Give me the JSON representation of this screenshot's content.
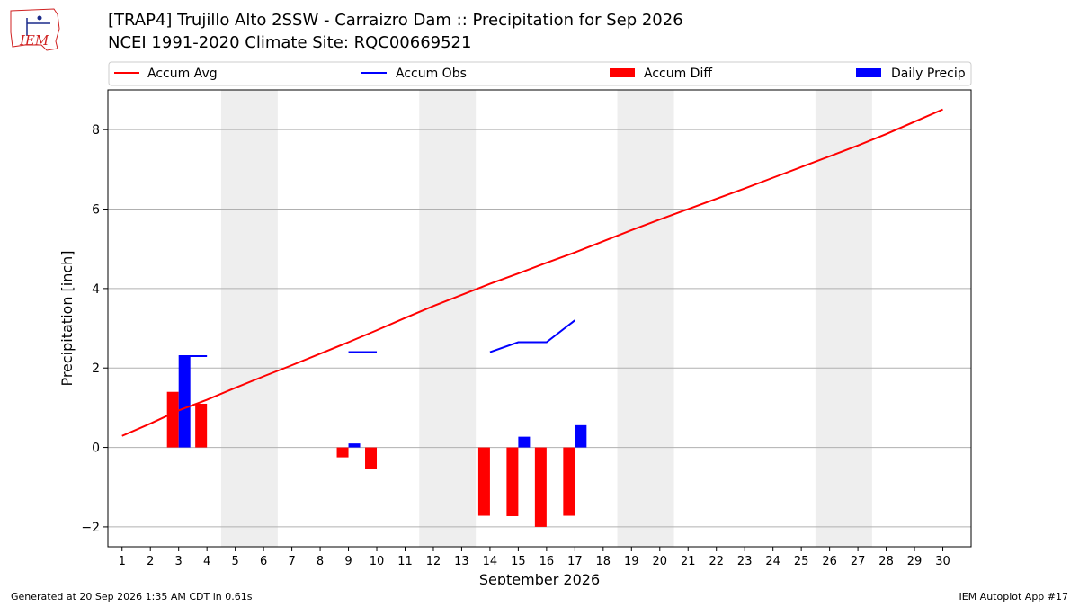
{
  "logo": {
    "text": "IEM"
  },
  "title": {
    "line1": "[TRAP4] Trujillo Alto 2SSW - Carraizro Dam :: Precipitation for Sep 2026",
    "line2": "NCEI 1991-2020 Climate Site: RQC00669521"
  },
  "footer": {
    "left": "Generated at 20 Sep 2026 1:35 AM CDT in 0.61s",
    "right": "IEM Autoplot App #17"
  },
  "colors": {
    "accum_avg": "#ff0000",
    "accum_obs": "#0000ff",
    "accum_diff": "#ff0000",
    "daily_precip": "#0000ff",
    "weekend_shade": "#eeeeee",
    "grid": "#b0b0b0"
  },
  "chart_data": {
    "type": "bar",
    "xlabel": "September 2026",
    "ylabel": "Precipitation [inch]",
    "xlim": [
      0.5,
      31
    ],
    "ylim": [
      -2.5,
      9.0
    ],
    "x_ticks": [
      1,
      2,
      3,
      4,
      5,
      6,
      7,
      8,
      9,
      10,
      11,
      12,
      13,
      14,
      15,
      16,
      17,
      18,
      19,
      20,
      21,
      22,
      23,
      24,
      25,
      26,
      27,
      28,
      29,
      30
    ],
    "y_ticks": [
      -2,
      0,
      2,
      4,
      6,
      8
    ],
    "y_tick_labels": [
      "−2",
      "0",
      "2",
      "4",
      "6",
      "8"
    ],
    "grid": "horizontal",
    "legend_position": "top",
    "legend": [
      "Accum Avg",
      "Accum Obs",
      "Accum Diff",
      "Daily Precip"
    ],
    "weekend_shading": [
      [
        4.5,
        6.5
      ],
      [
        11.5,
        13.5
      ],
      [
        18.5,
        20.5
      ],
      [
        25.5,
        27.5
      ]
    ],
    "series": [
      {
        "name": "Accum Avg",
        "type": "line",
        "x": [
          1,
          2,
          3,
          4,
          5,
          6,
          7,
          8,
          9,
          10,
          11,
          12,
          13,
          14,
          15,
          16,
          17,
          18,
          19,
          20,
          21,
          22,
          23,
          24,
          25,
          26,
          27,
          28,
          29,
          30
        ],
        "values": [
          0.29,
          0.6,
          0.93,
          1.2,
          1.5,
          1.79,
          2.07,
          2.36,
          2.65,
          2.95,
          3.26,
          3.56,
          3.84,
          4.12,
          4.38,
          4.65,
          4.91,
          5.19,
          5.47,
          5.74,
          6.0,
          6.26,
          6.52,
          6.79,
          7.06,
          7.33,
          7.6,
          7.89,
          8.2,
          8.51
        ]
      },
      {
        "name": "Accum Obs",
        "type": "line",
        "segments": [
          {
            "x": [
              3,
              4
            ],
            "values": [
              2.3,
              2.3
            ]
          },
          {
            "x": [
              9,
              10
            ],
            "values": [
              2.4,
              2.4
            ]
          },
          {
            "x": [
              14,
              15,
              16,
              17
            ],
            "values": [
              2.4,
              2.65,
              2.65,
              3.2
            ]
          }
        ]
      },
      {
        "name": "Accum Diff",
        "type": "bar",
        "x": [
          3,
          4,
          9,
          10,
          14,
          15,
          16,
          17
        ],
        "values": [
          1.4,
          1.1,
          -0.25,
          -0.55,
          -1.72,
          -1.73,
          -2.0,
          -1.72
        ]
      },
      {
        "name": "Daily Precip",
        "type": "bar",
        "x": [
          3,
          9,
          15,
          17
        ],
        "values": [
          2.28,
          0.1,
          0.27,
          0.56
        ]
      }
    ]
  }
}
